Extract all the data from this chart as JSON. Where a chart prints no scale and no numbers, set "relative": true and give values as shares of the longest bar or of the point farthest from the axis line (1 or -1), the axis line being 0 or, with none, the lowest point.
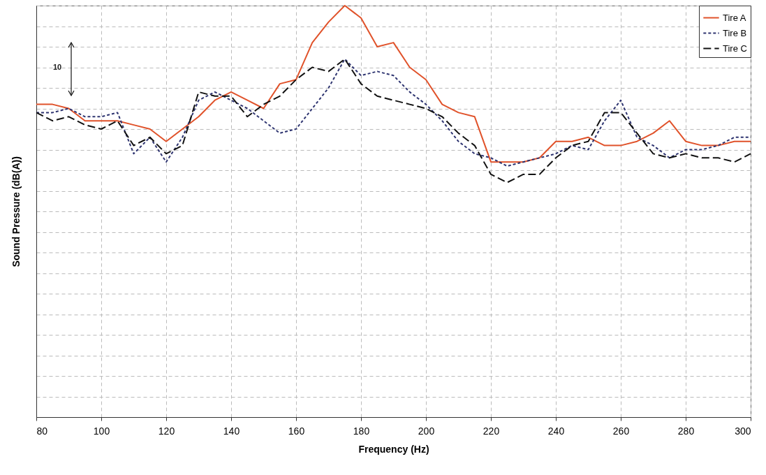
{
  "chart_data": {
    "type": "line",
    "relative": true,
    "xlabel": "Frequency (Hz)",
    "ylabel": "Sound Pressure (dB(A))",
    "annotations": [
      "10"
    ],
    "x": [
      80,
      85,
      90,
      95,
      100,
      105,
      110,
      115,
      120,
      125,
      130,
      135,
      140,
      145,
      150,
      155,
      160,
      165,
      170,
      175,
      180,
      185,
      190,
      195,
      200,
      205,
      210,
      215,
      220,
      225,
      230,
      235,
      240,
      245,
      250,
      255,
      260,
      265,
      270,
      275,
      280,
      285,
      290,
      295,
      300
    ],
    "xlim": [
      80,
      300
    ],
    "xticks": [
      80,
      100,
      120,
      140,
      160,
      180,
      200,
      220,
      240,
      260,
      280,
      300
    ],
    "grid": true,
    "legend": "top right",
    "marker": "none",
    "series": [
      {
        "name": "Tire A",
        "color": "#e0522a",
        "line_style": "solid",
        "values": [
          0.76,
          0.76,
          0.75,
          0.72,
          0.72,
          0.72,
          0.71,
          0.7,
          0.67,
          0.7,
          0.73,
          0.77,
          0.79,
          0.77,
          0.75,
          0.81,
          0.82,
          0.91,
          0.96,
          1.0,
          0.97,
          0.9,
          0.91,
          0.85,
          0.82,
          0.76,
          0.74,
          0.73,
          0.62,
          0.62,
          0.62,
          0.63,
          0.67,
          0.67,
          0.68,
          0.66,
          0.66,
          0.67,
          0.69,
          0.72,
          0.67,
          0.66,
          0.66,
          0.67,
          0.67
        ]
      },
      {
        "name": "Tire B",
        "color": "#2e3470",
        "line_style": "dotted",
        "values": [
          0.74,
          0.74,
          0.75,
          0.73,
          0.73,
          0.74,
          0.64,
          0.68,
          0.62,
          0.68,
          0.77,
          0.79,
          0.77,
          0.75,
          0.72,
          0.69,
          0.7,
          0.75,
          0.8,
          0.87,
          0.83,
          0.84,
          0.83,
          0.79,
          0.76,
          0.72,
          0.67,
          0.64,
          0.63,
          0.61,
          0.62,
          0.63,
          0.64,
          0.66,
          0.65,
          0.72,
          0.77,
          0.68,
          0.66,
          0.63,
          0.65,
          0.65,
          0.66,
          0.68,
          0.68
        ]
      },
      {
        "name": "Tire C",
        "color": "#111111",
        "line_style": "dashed",
        "values": [
          0.74,
          0.72,
          0.73,
          0.71,
          0.7,
          0.72,
          0.66,
          0.68,
          0.64,
          0.66,
          0.79,
          0.78,
          0.78,
          0.73,
          0.76,
          0.78,
          0.82,
          0.85,
          0.84,
          0.87,
          0.81,
          0.78,
          0.77,
          0.76,
          0.75,
          0.73,
          0.69,
          0.66,
          0.59,
          0.57,
          0.59,
          0.59,
          0.63,
          0.66,
          0.67,
          0.74,
          0.74,
          0.69,
          0.64,
          0.63,
          0.64,
          0.63,
          0.63,
          0.62,
          0.64
        ]
      }
    ]
  }
}
